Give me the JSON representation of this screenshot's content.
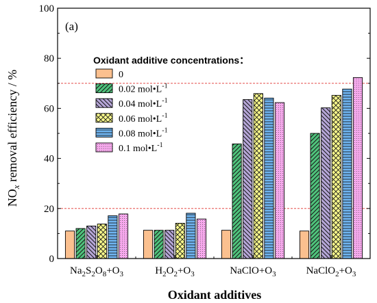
{
  "chart_data": {
    "type": "bar",
    "panel_label": "(a)",
    "xlabel": "Oxidant additives",
    "ylabel": {
      "pre": "NO",
      "sub": "x",
      "post": " removal efficiency / %"
    },
    "ylim": [
      0,
      100
    ],
    "yticks": [
      "0",
      "20",
      "40",
      "60",
      "80",
      "100"
    ],
    "reference_lines": [
      20,
      70
    ],
    "categories": [
      {
        "main": "Na",
        "parts": [
          [
            "Na",
            ""
          ],
          [
            "2",
            "sub"
          ],
          [
            "S",
            ""
          ],
          [
            "2",
            "sub"
          ],
          [
            "O",
            ""
          ],
          [
            "8",
            "sub"
          ],
          [
            "+O",
            ""
          ],
          [
            "3",
            "sub"
          ]
        ]
      },
      {
        "parts": [
          [
            "H",
            ""
          ],
          [
            "2",
            "sub"
          ],
          [
            "O",
            ""
          ],
          [
            "2",
            "sub"
          ],
          [
            "+O",
            ""
          ],
          [
            "3",
            "sub"
          ]
        ]
      },
      {
        "parts": [
          [
            "NaClO+O",
            ""
          ],
          [
            "3",
            "sub"
          ]
        ]
      },
      {
        "parts": [
          [
            "NaClO",
            ""
          ],
          [
            "2",
            "sub"
          ],
          [
            "+O",
            ""
          ],
          [
            "3",
            "sub"
          ]
        ]
      }
    ],
    "legend": {
      "title": "Oxidant additive concentrations：",
      "placement": "upper-left"
    },
    "series": [
      {
        "name": "0",
        "unit": "",
        "fill": "#fbc08f",
        "pattern": "none",
        "values": [
          11,
          11.3,
          11.3,
          11
        ]
      },
      {
        "name": "0.02 mol•L",
        "unit": "-1",
        "fill": "#4fc37c",
        "pattern": "diag-right",
        "values": [
          12,
          11.3,
          45.8,
          50
        ]
      },
      {
        "name": "0.04 mol•L",
        "unit": "-1",
        "fill": "#b6a6d8",
        "pattern": "diag-left",
        "values": [
          13,
          11.3,
          63.5,
          60.2
        ]
      },
      {
        "name": "0.06 mol•L",
        "unit": "-1",
        "fill": "#fbfb8c",
        "pattern": "cross",
        "values": [
          13.8,
          14.1,
          65.9,
          65.2
        ]
      },
      {
        "name": "0.08 mol•L",
        "unit": "-1",
        "fill": "#6fb5f2",
        "pattern": "horizontal",
        "values": [
          17.1,
          18.1,
          64.1,
          67.7
        ]
      },
      {
        "name": "0.1 mol•L",
        "unit": "-1",
        "fill": "#f8a8ee",
        "pattern": "dots",
        "values": [
          17.8,
          15.8,
          62.3,
          72.3
        ]
      }
    ]
  }
}
